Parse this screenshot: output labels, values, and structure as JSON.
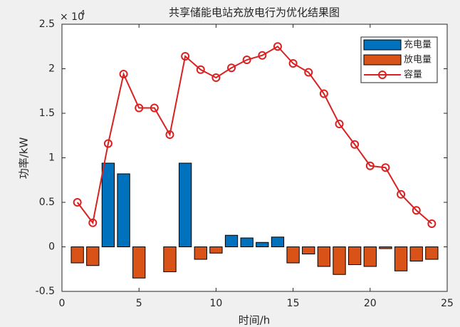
{
  "chart_data": {
    "type": "bar_line",
    "title": "共享储能电站充放电行为优化结果图",
    "xlabel": "时间/h",
    "ylabel": "功率/kW",
    "y_multiplier": {
      "base": "× 10",
      "exponent": "4"
    },
    "x": [
      1,
      2,
      3,
      4,
      5,
      6,
      7,
      8,
      9,
      10,
      11,
      12,
      13,
      14,
      15,
      16,
      17,
      18,
      19,
      20,
      21,
      22,
      23,
      24
    ],
    "series": [
      {
        "name": "充电量",
        "type": "bar",
        "color": "#0072BD",
        "values": [
          0,
          0,
          0.94,
          0.82,
          0,
          0,
          0,
          0.94,
          0,
          0,
          0.13,
          0.1,
          0.05,
          0.11,
          0,
          0,
          0,
          0,
          0,
          0,
          0,
          0,
          0,
          0
        ]
      },
      {
        "name": "放电量",
        "type": "bar",
        "color": "#D95319",
        "values": [
          -0.18,
          -0.21,
          0,
          0,
          -0.35,
          0,
          -0.28,
          0,
          -0.14,
          -0.07,
          0,
          0,
          0,
          0,
          -0.18,
          -0.08,
          -0.22,
          -0.31,
          -0.2,
          -0.22,
          -0.02,
          -0.27,
          -0.16,
          -0.14
        ]
      },
      {
        "name": "容量",
        "type": "line",
        "color": "#D92121",
        "values": [
          0.5,
          0.27,
          1.16,
          1.94,
          1.56,
          1.56,
          1.26,
          2.14,
          1.99,
          1.9,
          2.01,
          2.1,
          2.15,
          2.25,
          2.06,
          1.96,
          1.72,
          1.38,
          1.15,
          0.91,
          0.89,
          0.59,
          0.41,
          0.26
        ]
      }
    ],
    "xlim": [
      0,
      25
    ],
    "xticks": [
      0,
      5,
      10,
      15,
      20,
      25
    ],
    "ylim": [
      -0.5,
      2.5
    ],
    "yticks": [
      -0.5,
      0,
      0.5,
      1,
      1.5,
      2,
      2.5
    ],
    "legend": "upper right"
  }
}
